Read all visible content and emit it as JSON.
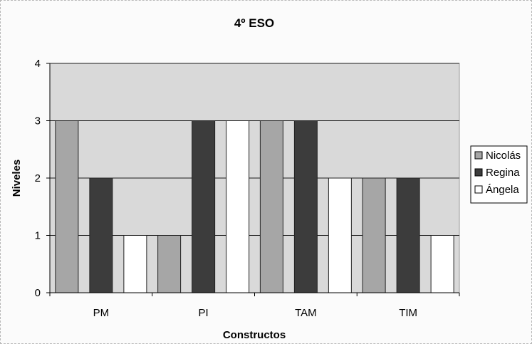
{
  "chart_data": {
    "type": "bar",
    "title": "4º ESO",
    "xlabel": "Constructos",
    "ylabel": "Niveles",
    "categories": [
      "PM",
      "PI",
      "TAM",
      "TIM"
    ],
    "ylim": [
      0,
      4
    ],
    "yticks": [
      "0",
      "1",
      "2",
      "3",
      "4"
    ],
    "grid": true,
    "legend_position": "right",
    "series": [
      {
        "name": "Nicolás",
        "values": [
          3,
          1,
          3,
          2
        ],
        "color": "#a6a6a6"
      },
      {
        "name": "Regina",
        "values": [
          2,
          3,
          3,
          2
        ],
        "color": "#3c3c3c"
      },
      {
        "name": "Ángela",
        "values": [
          1,
          3,
          2,
          1
        ],
        "color": "#ffffff"
      }
    ],
    "colors": {
      "plot_background": "#d9d9d9",
      "gridline": "#1a1a1a",
      "bar_border": "#222222"
    }
  }
}
